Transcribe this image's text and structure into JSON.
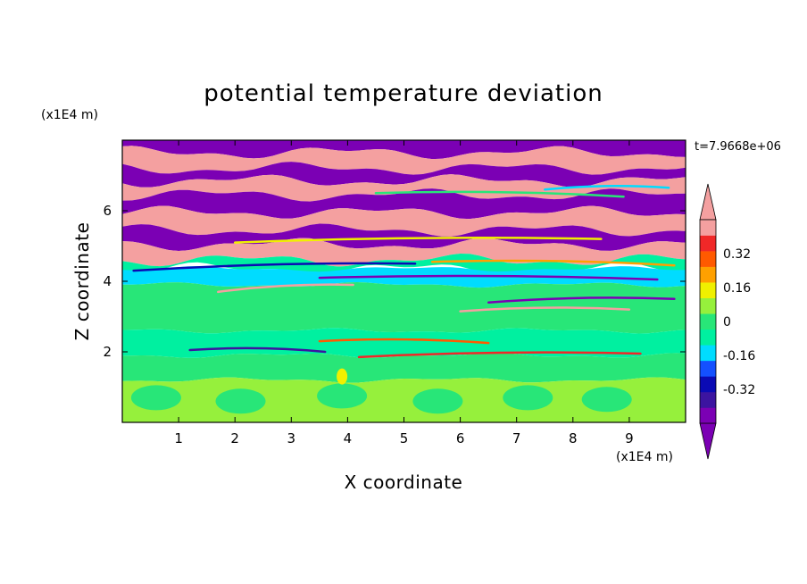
{
  "chart_data": {
    "type": "heatmap",
    "title": "potential temperature deviation",
    "xlabel": "X coordinate",
    "ylabel": "Z coordinate",
    "x_unit": "(x1E4 m)",
    "y_unit": "(x1E4 m)",
    "time_label": "t=7.9668e+06",
    "xlim": [
      0,
      10
    ],
    "ylim": [
      0,
      8
    ],
    "x_ticks": [
      "1",
      "2",
      "3",
      "4",
      "5",
      "6",
      "7",
      "8",
      "9"
    ],
    "y_ticks": [
      "2",
      "4",
      "6"
    ],
    "colorbar": {
      "levels": [
        -0.48,
        -0.4,
        -0.32,
        -0.24,
        -0.16,
        -0.08,
        0,
        0.08,
        0.16,
        0.24,
        0.32,
        0.4,
        0.48
      ],
      "colors": [
        "#7b00b4",
        "#3c14a0",
        "#0a0ab4",
        "#1450ff",
        "#00dcff",
        "#00f0a0",
        "#28e678",
        "#96f03c",
        "#f0f000",
        "#ffa000",
        "#ff5a00",
        "#f02828",
        "#f4a0a0"
      ],
      "tick_labels": [
        "0.32",
        "0.16",
        "0",
        "-0.16",
        "-0.32"
      ],
      "tick_values": [
        0.32,
        0.16,
        0,
        -0.16,
        -0.32
      ],
      "extend": "both"
    },
    "bands": [
      {
        "z": [
          7.65,
          8.0
        ],
        "level": -0.48
      },
      {
        "z": [
          7.2,
          7.65
        ],
        "level": 0.48
      },
      {
        "z": [
          6.85,
          7.2
        ],
        "level": -0.48
      },
      {
        "z": [
          6.45,
          6.85
        ],
        "level": 0.48
      },
      {
        "z": [
          5.95,
          6.45
        ],
        "level": -0.48
      },
      {
        "z": [
          5.45,
          5.95
        ],
        "level": 0.48
      },
      {
        "z": [
          5.05,
          5.45
        ],
        "level": -0.48
      },
      {
        "z": [
          4.6,
          5.05
        ],
        "level": 0.48
      },
      {
        "z": [
          4.35,
          4.6
        ],
        "level": -0.08
      },
      {
        "z": [
          3.9,
          4.35
        ],
        "level": -0.16
      },
      {
        "z": [
          2.6,
          3.9
        ],
        "level": 0.0
      },
      {
        "z": [
          1.9,
          2.6
        ],
        "level": -0.08
      },
      {
        "z": [
          1.2,
          1.9
        ],
        "level": 0.0
      },
      {
        "z": [
          0.0,
          1.2
        ],
        "level": 0.08
      }
    ]
  }
}
